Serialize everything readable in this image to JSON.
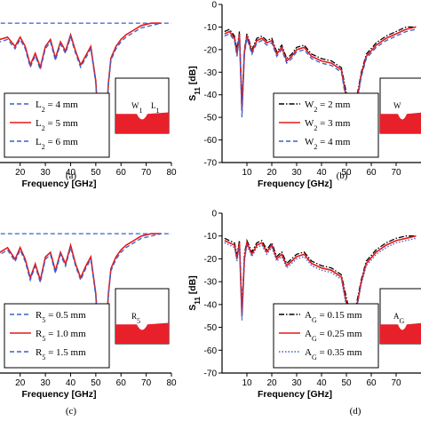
{
  "colors": {
    "black": "#000000",
    "red": "#e41a1c",
    "blue": "#3a5fcd",
    "fill": "#e8202a",
    "axis": "#000000"
  },
  "chart_data": [
    {
      "type": "line",
      "panel": "a",
      "caption": "(a)",
      "xlabel": "Frequency [GHz]",
      "ylabel": "",
      "xlim": [
        0,
        80
      ],
      "ylim": [
        -70,
        0
      ],
      "xticks": [
        "20",
        "30",
        "40",
        "50",
        "60",
        "70",
        "80"
      ],
      "yticks": [],
      "legend": [
        "L2 = 4 mm",
        "L2 = 5 mm",
        "L2 = 6 mm"
      ],
      "inset_labels": [
        "W1",
        "L1"
      ],
      "series": [
        {
          "name": "L2 = 4 mm",
          "style": "dash",
          "x": [
            1,
            80
          ],
          "y": [
            -10,
            -10
          ]
        },
        {
          "name": "L2 = 5 mm",
          "style": "solid",
          "x": [
            1,
            5,
            10,
            12,
            15,
            18,
            20,
            22,
            24,
            26,
            28,
            30,
            32,
            34,
            36,
            38,
            40,
            42,
            44,
            46,
            48,
            50,
            51,
            52,
            53,
            54,
            55,
            56,
            58,
            60,
            62,
            65,
            68,
            72,
            76
          ],
          "y": [
            -12,
            -13,
            -14,
            -17,
            -16,
            -20,
            -16,
            -20,
            -28,
            -23,
            -29,
            -20,
            -17,
            -25,
            -18,
            -22,
            -15,
            -22,
            -28,
            -24,
            -20,
            -35,
            -55,
            -63,
            -45,
            -55,
            -36,
            -25,
            -20,
            -17,
            -15,
            -13,
            -11,
            -10,
            -10
          ]
        },
        {
          "name": "L2 = 6 mm",
          "style": "dash",
          "x": [
            1,
            5,
            10,
            12,
            15,
            18,
            20,
            22,
            24,
            26,
            28,
            30,
            32,
            34,
            36,
            38,
            40,
            42,
            44,
            46,
            48,
            50,
            51,
            52,
            53,
            54,
            55,
            56,
            58,
            60,
            62,
            65,
            68,
            72,
            76
          ],
          "y": [
            -13,
            -14,
            -15,
            -18,
            -17,
            -21,
            -17,
            -21,
            -29,
            -24,
            -30,
            -21,
            -18,
            -26,
            -19,
            -23,
            -16,
            -23,
            -29,
            -25,
            -21,
            -36,
            -57,
            -64,
            -46,
            -56,
            -37,
            -26,
            -21,
            -18,
            -16,
            -14,
            -12,
            -11,
            -10
          ]
        }
      ]
    },
    {
      "type": "line",
      "panel": "b",
      "caption": "(b)",
      "xlabel": "Frequency [GHz]",
      "ylabel": "S11 [dB]",
      "xlim": [
        0,
        80
      ],
      "ylim": [
        -70,
        0
      ],
      "xticks": [
        "10",
        "20",
        "30",
        "40",
        "50",
        "60",
        "70"
      ],
      "yticks": [
        "0",
        "-10",
        "-20",
        "-30",
        "-40",
        "-50",
        "-60",
        "-70"
      ],
      "legend": [
        "W2 = 2 mm",
        "W2 = 3 mm",
        "W2 = 4 mm"
      ],
      "inset_labels": [
        "W"
      ],
      "series": [
        {
          "name": "W2 = 2 mm",
          "style": "dashdot",
          "x": [
            1,
            3,
            5,
            6,
            7,
            8,
            9,
            10,
            12,
            14,
            16,
            18,
            20,
            22,
            24,
            26,
            28,
            30,
            33,
            36,
            40,
            44,
            48,
            51,
            52,
            53,
            54,
            56,
            58,
            62,
            66,
            70,
            74,
            78
          ],
          "y": [
            -12,
            -11,
            -14,
            -20,
            -12,
            -44,
            -20,
            -13,
            -20,
            -15,
            -14,
            -16,
            -15,
            -21,
            -18,
            -24,
            -22,
            -19,
            -18,
            -22,
            -24,
            -25,
            -28,
            -45,
            -60,
            -45,
            -42,
            -30,
            -22,
            -17,
            -14,
            -12,
            -10,
            -10
          ]
        },
        {
          "name": "W2 = 3 mm",
          "style": "solid",
          "x": [
            1,
            3,
            5,
            6,
            7,
            8,
            9,
            10,
            12,
            14,
            16,
            18,
            20,
            22,
            24,
            26,
            28,
            30,
            33,
            36,
            40,
            44,
            48,
            51,
            52,
            53,
            54,
            56,
            58,
            62,
            66,
            70,
            74,
            78
          ],
          "y": [
            -13,
            -12,
            -15,
            -22,
            -13,
            -47,
            -21,
            -14,
            -21,
            -16,
            -15,
            -17,
            -16,
            -22,
            -19,
            -25,
            -23,
            -20,
            -19,
            -23,
            -25,
            -26,
            -29,
            -48,
            -63,
            -47,
            -44,
            -31,
            -23,
            -18,
            -15,
            -13,
            -11,
            -10
          ]
        },
        {
          "name": "W2 = 4 mm",
          "style": "dash",
          "x": [
            1,
            3,
            5,
            6,
            7,
            8,
            9,
            10,
            12,
            14,
            16,
            18,
            20,
            22,
            24,
            26,
            28,
            30,
            33,
            36,
            40,
            44,
            48,
            51,
            52,
            53,
            54,
            56,
            58,
            62,
            66,
            70,
            74,
            78
          ],
          "y": [
            -14,
            -13,
            -16,
            -23,
            -14,
            -50,
            -22,
            -15,
            -22,
            -17,
            -16,
            -18,
            -17,
            -23,
            -20,
            -26,
            -24,
            -21,
            -20,
            -24,
            -26,
            -27,
            -30,
            -50,
            -65,
            -48,
            -45,
            -32,
            -24,
            -19,
            -16,
            -14,
            -12,
            -11
          ]
        }
      ]
    },
    {
      "type": "line",
      "panel": "c",
      "caption": "(c)",
      "xlabel": "Frequency [GHz]",
      "ylabel": "",
      "xlim": [
        0,
        80
      ],
      "ylim": [
        -70,
        0
      ],
      "xticks": [
        "20",
        "30",
        "40",
        "50",
        "60",
        "70",
        "80"
      ],
      "yticks": [],
      "legend": [
        "R5 = 0.5 mm",
        "R5 = 1.0 mm",
        "R5 = 1.5 mm"
      ],
      "inset_labels": [
        "R5"
      ],
      "series": [
        {
          "name": "R5 = 0.5 mm",
          "style": "dash",
          "x": [
            1,
            80
          ],
          "y": [
            -10,
            -10
          ]
        },
        {
          "name": "R5 = 1.0 mm",
          "style": "solid",
          "x": [
            1,
            5,
            10,
            12,
            15,
            18,
            20,
            22,
            24,
            26,
            28,
            30,
            32,
            34,
            36,
            38,
            40,
            42,
            44,
            46,
            48,
            50,
            51,
            52,
            53,
            54,
            55,
            56,
            58,
            60,
            62,
            65,
            68,
            72,
            76
          ],
          "y": [
            -12,
            -13,
            -14,
            -18,
            -16,
            -21,
            -16,
            -21,
            -29,
            -23,
            -30,
            -20,
            -18,
            -26,
            -18,
            -23,
            -15,
            -23,
            -29,
            -24,
            -20,
            -36,
            -56,
            -63,
            -45,
            -55,
            -36,
            -25,
            -20,
            -17,
            -15,
            -13,
            -11,
            -10,
            -10
          ]
        },
        {
          "name": "R5 = 1.5 mm",
          "style": "dash",
          "x": [
            1,
            5,
            10,
            12,
            15,
            18,
            20,
            22,
            24,
            26,
            28,
            30,
            32,
            34,
            36,
            38,
            40,
            42,
            44,
            46,
            48,
            50,
            51,
            52,
            53,
            54,
            55,
            56,
            58,
            60,
            62,
            65,
            68,
            72,
            76
          ],
          "y": [
            -13,
            -14,
            -15,
            -19,
            -17,
            -22,
            -17,
            -22,
            -30,
            -24,
            -31,
            -21,
            -19,
            -27,
            -19,
            -24,
            -16,
            -24,
            -30,
            -25,
            -21,
            -37,
            -58,
            -64,
            -46,
            -56,
            -37,
            -26,
            -21,
            -18,
            -16,
            -14,
            -12,
            -11,
            -10
          ]
        }
      ]
    },
    {
      "type": "line",
      "panel": "d",
      "caption": "(d)",
      "xlabel": "Frequency [GHz]",
      "ylabel": "S11 [dB]",
      "xlim": [
        0,
        80
      ],
      "ylim": [
        -70,
        0
      ],
      "xticks": [
        "10",
        "20",
        "30",
        "40",
        "50",
        "60",
        "70"
      ],
      "yticks": [
        "0",
        "-10",
        "-20",
        "-30",
        "-40",
        "-50",
        "-60",
        "-70"
      ],
      "legend": [
        "AG = 0.15 mm",
        "AG = 0.25 mm",
        "AG = 0.35 mm"
      ],
      "inset_labels": [
        "AG"
      ],
      "series": [
        {
          "name": "AG = 0.15 mm",
          "style": "dashdot",
          "x": [
            1,
            3,
            5,
            6,
            7,
            8,
            9,
            10,
            12,
            14,
            16,
            18,
            20,
            22,
            24,
            26,
            28,
            30,
            33,
            36,
            40,
            44,
            48,
            51,
            52,
            53,
            54,
            56,
            58,
            62,
            66,
            70,
            74,
            78
          ],
          "y": [
            -11,
            -12,
            -13,
            -18,
            -12,
            -42,
            -18,
            -12,
            -17,
            -13,
            -12,
            -16,
            -13,
            -19,
            -17,
            -22,
            -20,
            -18,
            -17,
            -21,
            -23,
            -24,
            -27,
            -42,
            -56,
            -44,
            -40,
            -29,
            -21,
            -16,
            -13,
            -11,
            -10,
            -10
          ]
        },
        {
          "name": "AG = 0.25 mm",
          "style": "solid",
          "x": [
            1,
            3,
            5,
            6,
            7,
            8,
            9,
            10,
            12,
            14,
            16,
            18,
            20,
            22,
            24,
            26,
            28,
            30,
            33,
            36,
            40,
            44,
            48,
            51,
            52,
            53,
            54,
            56,
            58,
            62,
            66,
            70,
            74,
            78
          ],
          "y": [
            -12,
            -13,
            -14,
            -20,
            -13,
            -45,
            -20,
            -13,
            -18,
            -14,
            -13,
            -17,
            -14,
            -20,
            -18,
            -23,
            -21,
            -19,
            -18,
            -22,
            -24,
            -25,
            -28,
            -45,
            -60,
            -46,
            -42,
            -30,
            -22,
            -17,
            -14,
            -12,
            -11,
            -10
          ]
        },
        {
          "name": "AG = 0.35 mm",
          "style": "dot",
          "x": [
            1,
            3,
            5,
            6,
            7,
            8,
            9,
            10,
            12,
            14,
            16,
            18,
            20,
            22,
            24,
            26,
            28,
            30,
            33,
            36,
            40,
            44,
            48,
            51,
            52,
            53,
            54,
            56,
            58,
            62,
            66,
            70,
            74,
            78
          ],
          "y": [
            -13,
            -14,
            -15,
            -21,
            -14,
            -47,
            -21,
            -14,
            -19,
            -15,
            -14,
            -18,
            -15,
            -21,
            -19,
            -24,
            -22,
            -20,
            -19,
            -23,
            -25,
            -26,
            -29,
            -47,
            -62,
            -47,
            -43,
            -31,
            -23,
            -18,
            -15,
            -13,
            -12,
            -11
          ]
        }
      ]
    }
  ]
}
